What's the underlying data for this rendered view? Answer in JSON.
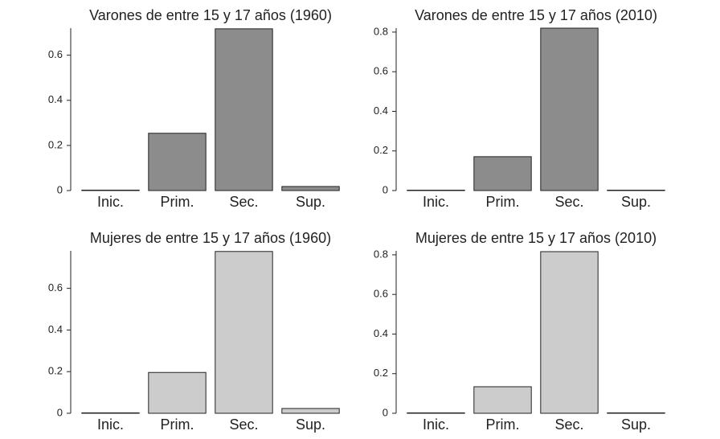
{
  "chart_data": [
    {
      "type": "bar",
      "title": "Varones de entre 15 y 17 años (1960)",
      "categories": [
        "Inic.",
        "Prim.",
        "Sec.",
        "Sup."
      ],
      "values": [
        0.002,
        0.254,
        0.717,
        0.018
      ],
      "color": "#8c8c8c",
      "ylim": [
        0,
        0.72
      ],
      "yticks": [
        0,
        0.2,
        0.4,
        0.6
      ]
    },
    {
      "type": "bar",
      "title": "Varones de entre 15 y 17 años (2010)",
      "categories": [
        "Inic.",
        "Prim.",
        "Sec.",
        "Sup."
      ],
      "values": [
        0.002,
        0.171,
        0.82,
        0.002
      ],
      "color": "#8c8c8c",
      "ylim": [
        0,
        0.82
      ],
      "yticks": [
        0,
        0.2,
        0.4,
        0.6,
        0.8
      ]
    },
    {
      "type": "bar",
      "title": "Mujeres de entre 15 y 17 años (1960)",
      "categories": [
        "Inic.",
        "Prim.",
        "Sec.",
        "Sup."
      ],
      "values": [
        0.002,
        0.196,
        0.777,
        0.023
      ],
      "color": "#cccccc",
      "ylim": [
        0,
        0.78
      ],
      "yticks": [
        0,
        0.2,
        0.4,
        0.6
      ]
    },
    {
      "type": "bar",
      "title": "Mujeres de entre 15 y 17 años (2010)",
      "categories": [
        "Inic.",
        "Prim.",
        "Sec.",
        "Sup."
      ],
      "values": [
        0.002,
        0.134,
        0.816,
        0.002
      ],
      "color": "#cccccc",
      "ylim": [
        0,
        0.82
      ],
      "yticks": [
        0,
        0.2,
        0.4,
        0.6,
        0.8
      ]
    }
  ]
}
